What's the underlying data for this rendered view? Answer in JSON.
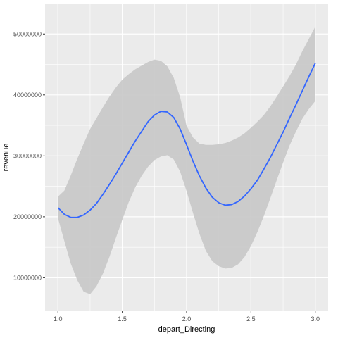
{
  "chart_data": {
    "type": "line",
    "title": "",
    "xlabel": "depart_Directing",
    "ylabel": "revenue",
    "xlim": [
      0.9,
      3.1
    ],
    "ylim": [
      4500000,
      55000000
    ],
    "grid": true,
    "x_ticks": [
      1.0,
      1.5,
      2.0,
      2.5,
      3.0
    ],
    "x_tick_labels": [
      "1.0",
      "1.5",
      "2.0",
      "2.5",
      "3.0"
    ],
    "y_ticks": [
      10000000,
      20000000,
      30000000,
      40000000,
      50000000
    ],
    "y_tick_labels": [
      "10000000",
      "20000000",
      "30000000",
      "40000000",
      "50000000"
    ],
    "colors": {
      "panel": "#ebebeb",
      "grid_major": "#ffffff",
      "ribbon": "#c8c8c8",
      "line": "#3366ff"
    },
    "series": [
      {
        "type": "smooth",
        "x": [
          1.0,
          1.05,
          1.1,
          1.15,
          1.2,
          1.25,
          1.3,
          1.35,
          1.4,
          1.45,
          1.5,
          1.55,
          1.6,
          1.65,
          1.7,
          1.75,
          1.8,
          1.85,
          1.9,
          1.95,
          2.0,
          2.05,
          2.1,
          2.15,
          2.2,
          2.25,
          2.3,
          2.35,
          2.4,
          2.45,
          2.5,
          2.55,
          2.6,
          2.65,
          2.7,
          2.75,
          2.8,
          2.85,
          2.9,
          2.95,
          3.0
        ],
        "y": [
          21500000,
          20400000,
          19900000,
          19900000,
          20300000,
          21100000,
          22200000,
          23700000,
          25300000,
          27000000,
          28800000,
          30600000,
          32400000,
          34000000,
          35600000,
          36700000,
          37300000,
          37200000,
          36300000,
          34400000,
          31800000,
          29100000,
          26700000,
          24700000,
          23200000,
          22300000,
          21900000,
          22000000,
          22500000,
          23400000,
          24600000,
          26000000,
          27800000,
          29700000,
          31800000,
          33900000,
          36200000,
          38400000,
          40700000,
          43000000,
          45200000
        ],
        "lower": [
          19800000,
          16000000,
          12300000,
          9600000,
          7700000,
          7300000,
          8600000,
          10700000,
          13400000,
          16500000,
          19500000,
          22400000,
          24800000,
          26700000,
          28200000,
          29300000,
          29900000,
          30100000,
          29400000,
          27400000,
          24200000,
          20600000,
          17200000,
          14400000,
          12700000,
          11900000,
          11500000,
          11600000,
          12200000,
          13400000,
          15200000,
          17500000,
          20100000,
          23000000,
          26000000,
          28900000,
          31700000,
          34000000,
          36100000,
          37700000,
          39000000
        ],
        "upper": [
          23300000,
          24300000,
          26800000,
          29500000,
          32000000,
          34400000,
          36200000,
          38000000,
          39700000,
          41200000,
          42500000,
          43400000,
          44200000,
          44800000,
          45400000,
          45800000,
          45600000,
          44700000,
          42800000,
          39600000,
          34900000,
          33000000,
          32000000,
          31800000,
          31800000,
          31900000,
          32100000,
          32500000,
          33000000,
          33700000,
          34600000,
          35600000,
          36700000,
          38100000,
          39700000,
          41400000,
          43100000,
          45000000,
          47200000,
          49200000,
          51200000
        ]
      }
    ]
  }
}
